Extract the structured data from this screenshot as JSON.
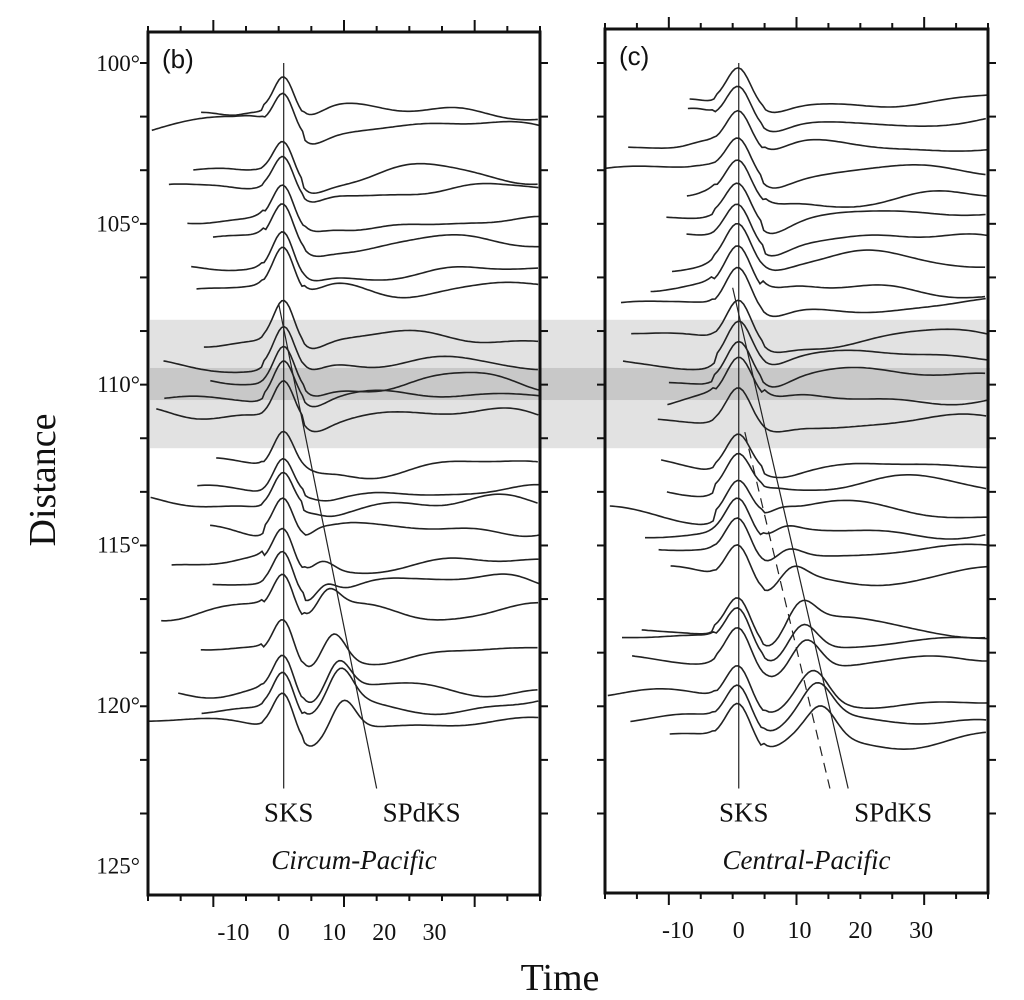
{
  "chart_data": {
    "type": "line",
    "subtype": "seismogram record section",
    "xlabel": "Time",
    "ylabel": "Distance",
    "y_ticks": [
      100,
      105,
      110,
      115,
      120,
      125
    ],
    "y_tick_labels": [
      "100°",
      "105°",
      "110°",
      "115°",
      "120°",
      "125°"
    ],
    "x_ticks": [
      -10,
      0,
      10,
      20,
      30
    ],
    "x_tick_labels": [
      "-10",
      "0",
      "10",
      "20",
      "30"
    ],
    "ylim": [
      98.8,
      125.9
    ],
    "y_inverted": true,
    "shaded_band": {
      "from": 108,
      "to": 112,
      "core_from": 109.5,
      "core_to": 110.5,
      "color": "#bdbdbd"
    },
    "trace_color": "#222222",
    "panels": [
      {
        "label": "(b)",
        "region": "Circum-Pacific",
        "xlim": [
          -27,
          51
        ],
        "phases": [
          {
            "name": "SKS",
            "line": [
              [
                0,
                100
              ],
              [
                0,
                122.6
              ]
            ],
            "style": "solid"
          },
          {
            "name": "SPdKS",
            "line": [
              [
                -1,
                107.5
              ],
              [
                18.5,
                122.6
              ]
            ],
            "style": "solid"
          }
        ],
        "trace_distances": [
          101.5,
          102,
          103.5,
          104,
          105,
          105.6,
          106.5,
          107,
          108.6,
          109.4,
          110,
          110.4,
          111,
          112.6,
          113.4,
          113.8,
          114.5,
          115.6,
          116.2,
          117,
          118.4,
          119.5,
          120,
          120.6
        ]
      },
      {
        "label": "(c)",
        "region": "Central-Pacific",
        "xlim": [
          -22,
          41
        ],
        "phases": [
          {
            "name": "SKS",
            "line": [
              [
                0,
                100
              ],
              [
                0,
                122.6
              ]
            ],
            "style": "solid"
          },
          {
            "name": "SPdKS",
            "line": [
              [
                -1,
                107
              ],
              [
                18,
                122.6
              ]
            ],
            "style": "solid"
          },
          {
            "name": "SPdKS",
            "line": [
              [
                1,
                111.5
              ],
              [
                15,
                122.6
              ]
            ],
            "style": "dashed"
          }
        ],
        "trace_distances": [
          101.2,
          101.8,
          102.6,
          103.4,
          104.2,
          104.8,
          105.5,
          106.2,
          107,
          107.6,
          108.6,
          109.2,
          109.8,
          110.4,
          111.2,
          112.6,
          113.2,
          114,
          114.6,
          115.2,
          116,
          117.6,
          118,
          118.6,
          119.8,
          120.4,
          121
        ]
      }
    ]
  }
}
